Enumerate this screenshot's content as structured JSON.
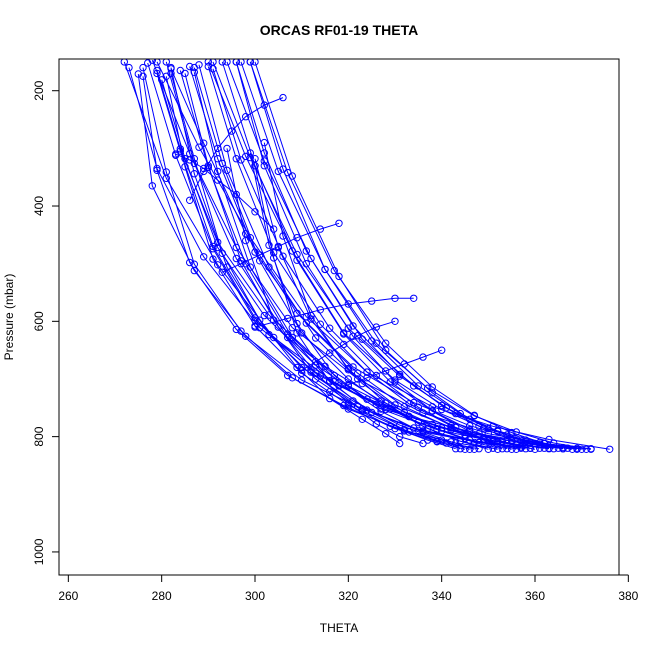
{
  "chart_data": {
    "type": "line",
    "title": "ORCAS RF01-19 THETA",
    "xlabel": "THETA",
    "ylabel": "Pressure (mbar)",
    "xlim": [
      258,
      378
    ],
    "ylim": [
      1040,
      145
    ],
    "y_reversed": true,
    "x_ticks": [
      260,
      280,
      300,
      320,
      340,
      360,
      380
    ],
    "y_ticks": [
      200,
      400,
      600,
      800,
      1000
    ],
    "x_tick_labels": [
      "260",
      "280",
      "300",
      "320",
      "340",
      "360",
      "380"
    ],
    "y_tick_labels": [
      "200",
      "400",
      "600",
      "800",
      "1000"
    ],
    "grid": false,
    "legend": "none",
    "series_color": "#0000ff",
    "marker": "open-circle",
    "series": [
      {
        "x": [
          371,
          360,
          348,
          333,
          318,
          304,
          292,
          281,
          272
        ],
        "y": [
          822,
          812,
          795,
          765,
          712,
          628,
          502,
          352,
          150
        ]
      },
      {
        "x": [
          366,
          355,
          342,
          328,
          314,
          301,
          289,
          279,
          273
        ],
        "y": [
          821,
          808,
          788,
          753,
          695,
          611,
          488,
          335,
          160
        ]
      },
      {
        "x": [
          376,
          363,
          351,
          338,
          324,
          311,
          299,
          288,
          279
        ],
        "y": [
          822,
          805,
          782,
          748,
          688,
          592,
          455,
          298,
          150
        ]
      },
      {
        "x": [
          362,
          352,
          340,
          326,
          312,
          300,
          291,
          283,
          277
        ],
        "y": [
          820,
          809,
          785,
          744,
          684,
          598,
          474,
          312,
          152
        ]
      },
      {
        "x": [
          358,
          348,
          336,
          323,
          310,
          298,
          287,
          278,
          275
        ],
        "y": [
          821,
          810,
          790,
          752,
          702,
          626,
          512,
          365,
          171
        ]
      },
      {
        "x": [
          369,
          357,
          346,
          334,
          321,
          309,
          298,
          289,
          282
        ],
        "y": [
          820,
          806,
          781,
          741,
          679,
          586,
          448,
          291,
          162
        ]
      },
      {
        "x": [
          351,
          343,
          332,
          320,
          308,
          297,
          287,
          281,
          276
        ],
        "y": [
          820,
          811,
          790,
          752,
          698,
          617,
          501,
          341,
          160
        ]
      },
      {
        "x": [
          372,
          362,
          350,
          336,
          322,
          308,
          296,
          286,
          278
        ],
        "y": [
          821,
          812,
          795,
          759,
          700,
          611,
          472,
          309,
          147
        ]
      },
      {
        "x": [
          360,
          349,
          338,
          327,
          315,
          303,
          292,
          284,
          279
        ],
        "y": [
          822,
          804,
          779,
          738,
          678,
          589,
          463,
          301,
          165
        ]
      },
      {
        "x": [
          345,
          339,
          330,
          319,
          307,
          296,
          286,
          279,
          276
        ],
        "y": [
          822,
          809,
          786,
          746,
          694,
          614,
          498,
          338,
          175
        ]
      },
      {
        "x": [
          367,
          356,
          345,
          333,
          320,
          307,
          296,
          287,
          281
        ],
        "y": [
          820,
          815,
          797,
          765,
          712,
          628,
          491,
          326,
          150
        ]
      },
      {
        "x": [
          354,
          345,
          335,
          324,
          313,
          302,
          292,
          285,
          280
        ],
        "y": [
          821,
          803,
          775,
          735,
          676,
          590,
          472,
          318,
          181
        ]
      },
      {
        "x": [
          365,
          358,
          349,
          340,
          330,
          319,
          308,
          298,
          290
        ],
        "y": [
          820,
          806,
          785,
          753,
          702,
          620,
          478,
          314,
          150
        ]
      },
      {
        "x": [
          348,
          341,
          333,
          323,
          313,
          303,
          294,
          287,
          282
        ],
        "y": [
          821,
          811,
          792,
          755,
          700,
          623,
          506,
          344,
          160
        ]
      },
      {
        "x": [
          370,
          361,
          352,
          343,
          334,
          323,
          312,
          302,
          294
        ],
        "y": [
          822,
          810,
          790,
          760,
          712,
          631,
          491,
          322,
          150
        ]
      },
      {
        "x": [
          357,
          350,
          342,
          332,
          322,
          311,
          300,
          292,
          286
        ],
        "y": [
          820,
          808,
          785,
          748,
          690,
          603,
          480,
          318,
          158
        ]
      },
      {
        "x": [
          346,
          340,
          331,
          321,
          310,
          300,
          291,
          284,
          279
        ],
        "y": [
          822,
          806,
          780,
          738,
          680,
          594,
          470,
          305,
          170
        ]
      },
      {
        "x": [
          363,
          354,
          346,
          338,
          329,
          319,
          309,
          300,
          293
        ],
        "y": [
          821,
          812,
          791,
          756,
          705,
          622,
          494,
          330,
          150
        ]
      },
      {
        "x": [
          356,
          350,
          343,
          335,
          326,
          316,
          306,
          297,
          291
        ],
        "y": [
          822,
          807,
          784,
          749,
          694,
          612,
          487,
          320,
          162
        ]
      },
      {
        "x": [
          372,
          364,
          356,
          347,
          337,
          326,
          315,
          305,
          297
        ],
        "y": [
          822,
          811,
          792,
          764,
          716,
          638,
          510,
          340,
          150
        ]
      },
      {
        "x": [
          343,
          337,
          329,
          320,
          310,
          300,
          291,
          285,
          281
        ],
        "y": [
          821,
          806,
          782,
          745,
          690,
          608,
          492,
          332,
          175
        ]
      },
      {
        "x": [
          359,
          353,
          346,
          338,
          330,
          321,
          311,
          302,
          296
        ],
        "y": [
          820,
          808,
          788,
          755,
          705,
          626,
          500,
          330,
          150
        ]
      },
      {
        "x": [
          366,
          358,
          350,
          341,
          331,
          320,
          309,
          299,
          291
        ],
        "y": [
          821,
          809,
          786,
          750,
          695,
          612,
          484,
          316,
          150
        ]
      },
      {
        "x": [
          350,
          344,
          337,
          329,
          320,
          310,
          301,
          293,
          287
        ],
        "y": [
          822,
          808,
          786,
          752,
          700,
          620,
          495,
          326,
          160
        ]
      },
      {
        "x": [
          368,
          361,
          354,
          346,
          338,
          328,
          318,
          308,
          300
        ],
        "y": [
          822,
          813,
          797,
          770,
          724,
          650,
          522,
          348,
          150
        ]
      },
      {
        "x": [
          353,
          347,
          340,
          332,
          323,
          313,
          303,
          294,
          288
        ],
        "y": [
          821,
          810,
          790,
          758,
          708,
          629,
          506,
          338,
          155
        ]
      },
      {
        "x": [
          361,
          355,
          348,
          340,
          331,
          321,
          311,
          302,
          296
        ],
        "y": [
          820,
          806,
          782,
          746,
          692,
          608,
          478,
          308,
          150
        ]
      },
      {
        "x": [
          347,
          342,
          335,
          327,
          318,
          308,
          299,
          292,
          287
        ],
        "y": [
          822,
          809,
          789,
          756,
          706,
          628,
          506,
          340,
          168
        ]
      },
      {
        "x": [
          364,
          359,
          352,
          344,
          335,
          325,
          315,
          306,
          299
        ],
        "y": [
          821,
          811,
          791,
          760,
          712,
          634,
          510,
          336,
          150
        ]
      },
      {
        "x": [
          355,
          349,
          342,
          333,
          324,
          314,
          304,
          296,
          290
        ],
        "y": [
          822,
          806,
          781,
          743,
          688,
          605,
          481,
          318,
          158
        ]
      },
      {
        "x": [
          344,
          339,
          332,
          324,
          316,
          307,
          298,
          290,
          284
        ],
        "y": [
          821,
          808,
          788,
          754,
          703,
          622,
          500,
          333,
          165
        ]
      },
      {
        "x": [
          369,
          362,
          355,
          347,
          338,
          328,
          317,
          307,
          299
        ],
        "y": [
          822,
          812,
          793,
          763,
          714,
          638,
          512,
          342,
          150
        ]
      },
      {
        "x": [
          336,
          331,
          326,
          320,
          313,
          305,
          297,
          290,
          285
        ],
        "y": [
          812,
          800,
          778,
          742,
          690,
          610,
          495,
          330,
          170
        ]
      },
      {
        "x": [
          331,
          328,
          323,
          316,
          309,
          301,
          293,
          287,
          282
        ],
        "y": [
          812,
          795,
          770,
          734,
          680,
          598,
          482,
          318,
          170
        ]
      },
      {
        "x": [
          357,
          346,
          334,
          322,
          312,
          304,
          298,
          294
        ],
        "y": [
          818,
          806,
          785,
          748,
          688,
          598,
          460,
          300
        ]
      },
      {
        "x": [
          363,
          351,
          339,
          327,
          317,
          309,
          303,
          299
        ],
        "y": [
          820,
          808,
          788,
          752,
          694,
          604,
          468,
          308
        ]
      },
      {
        "x": [
          359,
          348,
          336,
          325,
          316,
          309,
          304,
          300
        ],
        "y": [
          820,
          810,
          792,
          758,
          705,
          620,
          490,
          330
        ]
      },
      {
        "x": [
          366,
          354,
          342,
          330,
          320,
          312,
          306,
          302
        ],
        "y": [
          819,
          806,
          784,
          745,
          684,
          590,
          452,
          290
        ]
      },
      {
        "x": [
          334,
          330,
          325,
          320,
          314,
          307,
          300
        ],
        "y": [
          560,
          560,
          565,
          570,
          580,
          595,
          610
        ]
      },
      {
        "x": [
          352,
          344,
          336,
          328,
          320,
          312,
          305,
          300
        ],
        "y": [
          822,
          808,
          782,
          742,
          682,
          596,
          472,
          318
        ]
      },
      {
        "x": [
          306,
          302,
          298,
          295,
          292,
          289,
          286
        ],
        "y": [
          212,
          225,
          245,
          270,
          300,
          340,
          390
        ]
      },
      {
        "x": [
          283,
          286,
          289,
          292,
          296,
          300,
          304
        ],
        "y": [
          310,
          320,
          335,
          355,
          380,
          410,
          440
        ]
      },
      {
        "x": [
          293,
          297,
          301,
          305,
          309,
          314,
          318
        ],
        "y": [
          515,
          500,
          485,
          470,
          455,
          440,
          430
        ]
      },
      {
        "x": [
          310,
          313,
          316,
          319,
          322,
          326,
          330
        ],
        "y": [
          685,
          670,
          655,
          640,
          625,
          610,
          600
        ]
      },
      {
        "x": [
          316,
          320,
          324,
          328,
          332,
          336,
          340
        ],
        "y": [
          722,
          710,
          698,
          686,
          674,
          662,
          650
        ]
      }
    ]
  }
}
